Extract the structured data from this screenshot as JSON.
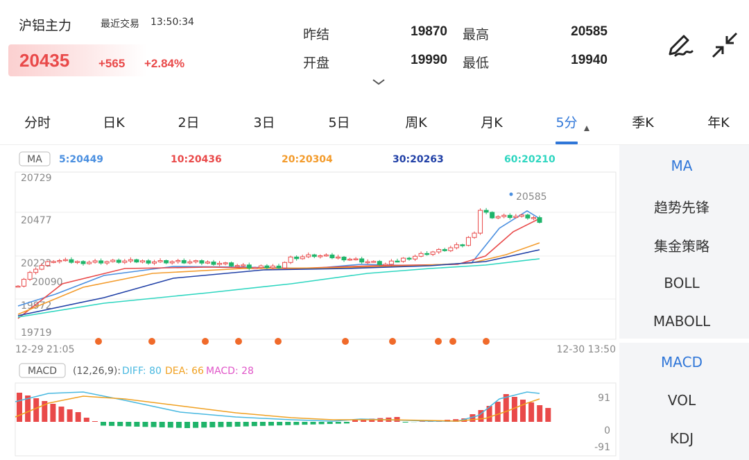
{
  "header": {
    "name": "沪铝主力",
    "latest_label": "最近交易",
    "latest_time": "13:50:34",
    "price": "20435",
    "change": "+565",
    "change_pct": "+2.84%"
  },
  "quote": {
    "prev_close_label": "昨结",
    "prev_close": "19870",
    "high_label": "最高",
    "high": "20585",
    "open_label": "开盘",
    "open": "19990",
    "low_label": "最低",
    "low": "19940"
  },
  "expand_icon": "chevron-down-icon",
  "tools": {
    "pen_icon": "draw-pen-icon",
    "shrink_icon": "shrink-arrows-icon"
  },
  "tabs": [
    "分时",
    "日K",
    "2日",
    "3日",
    "5日",
    "周K",
    "月K",
    "5分",
    "季K",
    "年K"
  ],
  "active_tab": "5分",
  "colors": {
    "up": "#e94949",
    "down": "#1fb46a",
    "accent": "#2f76d8",
    "ma5": "#4a8fe0",
    "ma10": "#e94949",
    "ma20": "#f39b2b",
    "ma30": "#1f3fa6",
    "ma60": "#2ed6c0",
    "diff": "#48b8e0",
    "dea": "#f0a020",
    "macd": "#e055c8",
    "signal_dot": "#f06a2a"
  },
  "ma_legend": {
    "badge": "MA",
    "items": [
      {
        "label": "5:20449",
        "color": "#4a8fe0"
      },
      {
        "label": "10:20436",
        "color": "#e94949"
      },
      {
        "label": "20:20304",
        "color": "#f39b2b"
      },
      {
        "label": "30:20263",
        "color": "#1f3fa6"
      },
      {
        "label": "60:20210",
        "color": "#2ed6c0"
      }
    ]
  },
  "macd_legend": {
    "badge": "MACD",
    "params": "(12,26,9):",
    "diff": "DIFF: 80",
    "dea": "DEA: 66",
    "macd": "MACD: 28"
  },
  "chart_data": {
    "type": "candlestick",
    "y_ticks": [
      "20729",
      "20477",
      "20222",
      "20090",
      "19972",
      "19719"
    ],
    "ylim": [
      19719,
      20729
    ],
    "high_marker": "20585",
    "x_start_label": "12-29 21:05",
    "x_end_label": "12-30 13:50",
    "last_close": 20435,
    "macd_ticks": [
      "91",
      "0",
      "-91"
    ],
    "macd_last": {
      "diff": 80,
      "dea": 66,
      "macd": 28
    },
    "signal_dot_count": 10
  },
  "side_menu": {
    "main": [
      "MA",
      "趋势先锋",
      "集金策略",
      "BOLL",
      "MABOLL"
    ],
    "main_active": "MA",
    "sub": [
      "MACD",
      "VOL",
      "KDJ"
    ],
    "sub_active": "MACD"
  }
}
